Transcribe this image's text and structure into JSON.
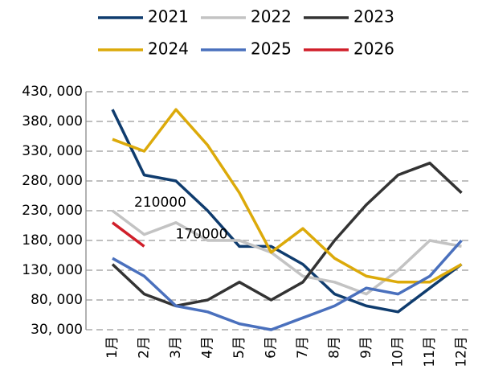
{
  "chart_data": {
    "type": "line",
    "categories": [
      "1月",
      "2月",
      "3月",
      "4月",
      "5月",
      "6月",
      "7月",
      "8月",
      "9月",
      "10月",
      "11月",
      "12月"
    ],
    "series": [
      {
        "name": "2021",
        "color": "#0f3c6e",
        "values": [
          400000,
          290000,
          280000,
          230000,
          170000,
          170000,
          140000,
          90000,
          70000,
          60000,
          100000,
          140000
        ]
      },
      {
        "name": "2022",
        "color": "#c3c3c3",
        "values": [
          230000,
          190000,
          210000,
          180000,
          180000,
          160000,
          120000,
          110000,
          90000,
          130000,
          180000,
          170000
        ]
      },
      {
        "name": "2023",
        "color": "#333333",
        "values": [
          140000,
          90000,
          70000,
          80000,
          110000,
          80000,
          110000,
          180000,
          240000,
          290000,
          310000,
          260000
        ]
      },
      {
        "name": "2024",
        "color": "#dcaa0a",
        "values": [
          350000,
          330000,
          400000,
          340000,
          260000,
          160000,
          200000,
          150000,
          120000,
          110000,
          110000,
          140000
        ]
      },
      {
        "name": "2025",
        "color": "#4a70bd",
        "values": [
          150000,
          120000,
          70000,
          60000,
          40000,
          30000,
          50000,
          70000,
          100000,
          90000,
          120000,
          180000
        ]
      },
      {
        "name": "2026",
        "color": "#d01f2a",
        "values": [
          210000,
          170000,
          null,
          null,
          null,
          null,
          null,
          null,
          null,
          null,
          null,
          null
        ],
        "show_labels": true
      }
    ],
    "ylim": [
      30000,
      430000
    ],
    "yticks": [
      {
        "value": 30000,
        "label": "30, 000"
      },
      {
        "value": 80000,
        "label": "80, 000"
      },
      {
        "value": 130000,
        "label": "130, 000"
      },
      {
        "value": 180000,
        "label": "180, 000"
      },
      {
        "value": 230000,
        "label": "230, 000"
      },
      {
        "value": 280000,
        "label": "280, 000"
      },
      {
        "value": 330000,
        "label": "330, 000"
      },
      {
        "value": 380000,
        "label": "380, 000"
      },
      {
        "value": 430000,
        "label": "430, 000"
      }
    ],
    "grid": true,
    "legend": "top"
  }
}
